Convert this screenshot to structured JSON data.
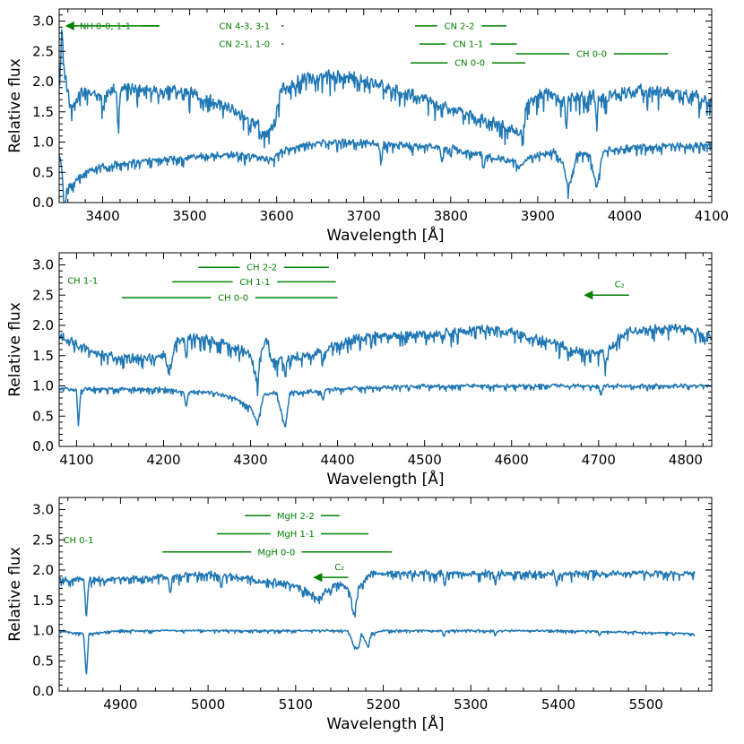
{
  "chart_data": [
    {
      "type": "line",
      "xlabel": "Wavelength [Å]",
      "ylabel": "Relative flux",
      "xlim": [
        3350,
        4100
      ],
      "ylim": [
        0,
        3.2
      ],
      "xticks": [
        3400,
        3500,
        3600,
        3700,
        3800,
        3900,
        4000,
        4100
      ],
      "yticks": [
        0.0,
        0.5,
        1.0,
        1.5,
        2.0,
        2.5,
        3.0
      ],
      "xtick_labels": [
        "3400",
        "3500",
        "3600",
        "3700",
        "3800",
        "3900",
        "4000",
        "4100"
      ],
      "ytick_labels": [
        "0.0",
        "0.5",
        "1.0",
        "1.5",
        "2.0",
        "2.5",
        "3.0"
      ],
      "series": [
        {
          "color": "#1f77b4",
          "seed": 11,
          "noise": 0.12,
          "points": [
            [
              3350,
              2.0
            ],
            [
              3353,
              2.9
            ],
            [
              3356,
              2.2
            ],
            [
              3362,
              1.6
            ],
            [
              3380,
              1.85
            ],
            [
              3400,
              1.75
            ],
            [
              3420,
              1.9
            ],
            [
              3450,
              1.85
            ],
            [
              3480,
              1.85
            ],
            [
              3500,
              1.8
            ],
            [
              3530,
              1.65
            ],
            [
              3560,
              1.45
            ],
            [
              3580,
              1.25
            ],
            [
              3590,
              1.15
            ],
            [
              3597,
              1.3
            ],
            [
              3605,
              1.85
            ],
            [
              3630,
              2.05
            ],
            [
              3660,
              2.1
            ],
            [
              3690,
              2.05
            ],
            [
              3720,
              1.95
            ],
            [
              3760,
              1.75
            ],
            [
              3800,
              1.55
            ],
            [
              3830,
              1.4
            ],
            [
              3850,
              1.3
            ],
            [
              3870,
              1.2
            ],
            [
              3880,
              1.1
            ],
            [
              3886,
              1.6
            ],
            [
              3900,
              1.8
            ],
            [
              3940,
              1.7
            ],
            [
              3960,
              1.75
            ],
            [
              3980,
              1.75
            ],
            [
              4000,
              1.8
            ],
            [
              4020,
              1.85
            ],
            [
              4060,
              1.8
            ],
            [
              4080,
              1.75
            ],
            [
              4100,
              1.65
            ]
          ],
          "dips": [
            [
              3418,
              0.6
            ],
            [
              3582,
              0.2
            ],
            [
              3883,
              0.3
            ],
            [
              3933,
              0.4
            ],
            [
              3968,
              0.35
            ]
          ]
        },
        {
          "color": "#1f77b4",
          "seed": 23,
          "noise": 0.06,
          "points": [
            [
              3350,
              0.8
            ],
            [
              3353,
              0.6
            ],
            [
              3356,
              0.15
            ],
            [
              3362,
              0.3
            ],
            [
              3380,
              0.5
            ],
            [
              3400,
              0.6
            ],
            [
              3420,
              0.65
            ],
            [
              3450,
              0.7
            ],
            [
              3500,
              0.75
            ],
            [
              3550,
              0.8
            ],
            [
              3580,
              0.75
            ],
            [
              3595,
              0.7
            ],
            [
              3605,
              0.85
            ],
            [
              3630,
              0.95
            ],
            [
              3660,
              1.0
            ],
            [
              3700,
              1.0
            ],
            [
              3750,
              0.95
            ],
            [
              3800,
              0.9
            ],
            [
              3850,
              0.75
            ],
            [
              3870,
              0.7
            ],
            [
              3880,
              0.6
            ],
            [
              3890,
              0.75
            ],
            [
              3920,
              0.85
            ],
            [
              3930,
              0.6
            ],
            [
              3935,
              0.2
            ],
            [
              3945,
              0.8
            ],
            [
              3960,
              0.8
            ],
            [
              3968,
              0.25
            ],
            [
              3975,
              0.85
            ],
            [
              4000,
              0.9
            ],
            [
              4050,
              0.95
            ],
            [
              4100,
              0.95
            ]
          ],
          "dips": [
            [
              3356,
              0.3
            ],
            [
              3720,
              0.3
            ],
            [
              3790,
              0.25
            ],
            [
              3838,
              0.25
            ]
          ]
        }
      ],
      "annotations": [
        {
          "text": "NH 0-0, 1-1",
          "x0": 3357,
          "x1": 3465,
          "y": 2.92,
          "tx": 3403,
          "arrow": "left"
        },
        {
          "text": "CN 4-3, 3-1",
          "x0": 3522,
          "x1": 3608,
          "y": 2.92,
          "tx": 3563
        },
        {
          "text": "CN 2-1, 1-0",
          "x0": 3522,
          "x1": 3608,
          "y": 2.62,
          "tx": 3563
        },
        {
          "text": "CN 2-2",
          "x0": 3759,
          "x1": 3864,
          "y": 2.92,
          "tx": 3810
        },
        {
          "text": "CN 1-1",
          "x0": 3764,
          "x1": 3876,
          "y": 2.62,
          "tx": 3820
        },
        {
          "text": "CN 0-0",
          "x0": 3754,
          "x1": 3886,
          "y": 2.31,
          "tx": 3822
        },
        {
          "text": "CH 0-0",
          "x0": 3875,
          "x1": 4050,
          "y": 2.46,
          "tx": 3962
        }
      ]
    },
    {
      "type": "line",
      "xlabel": "Wavelength [Å]",
      "ylabel": "Relative flux",
      "xlim": [
        4080,
        4830
      ],
      "ylim": [
        0,
        3.2
      ],
      "xticks": [
        4100,
        4200,
        4300,
        4400,
        4500,
        4600,
        4700,
        4800
      ],
      "yticks": [
        0.0,
        0.5,
        1.0,
        1.5,
        2.0,
        2.5,
        3.0
      ],
      "xtick_labels": [
        "4100",
        "4200",
        "4300",
        "4400",
        "4500",
        "4600",
        "4700",
        "4800"
      ],
      "ytick_labels": [
        "0.0",
        "0.5",
        "1.0",
        "1.5",
        "2.0",
        "2.5",
        "3.0"
      ],
      "series": [
        {
          "color": "#1f77b4",
          "seed": 37,
          "noise": 0.09,
          "points": [
            [
              4080,
              1.85
            ],
            [
              4100,
              1.7
            ],
            [
              4120,
              1.55
            ],
            [
              4150,
              1.45
            ],
            [
              4180,
              1.45
            ],
            [
              4200,
              1.5
            ],
            [
              4208,
              1.3
            ],
            [
              4215,
              1.8
            ],
            [
              4240,
              1.8
            ],
            [
              4270,
              1.7
            ],
            [
              4290,
              1.6
            ],
            [
              4300,
              1.5
            ],
            [
              4305,
              1.2
            ],
            [
              4312,
              1.5
            ],
            [
              4318,
              1.85
            ],
            [
              4325,
              1.4
            ],
            [
              4340,
              1.45
            ],
            [
              4360,
              1.5
            ],
            [
              4380,
              1.55
            ],
            [
              4400,
              1.7
            ],
            [
              4440,
              1.85
            ],
            [
              4480,
              1.85
            ],
            [
              4520,
              1.85
            ],
            [
              4560,
              1.95
            ],
            [
              4600,
              1.9
            ],
            [
              4640,
              1.75
            ],
            [
              4660,
              1.65
            ],
            [
              4680,
              1.55
            ],
            [
              4700,
              1.55
            ],
            [
              4715,
              1.65
            ],
            [
              4730,
              1.9
            ],
            [
              4760,
              1.95
            ],
            [
              4800,
              1.95
            ],
            [
              4830,
              1.8
            ]
          ],
          "dips": [
            [
              4226,
              0.3
            ],
            [
              4308,
              0.3
            ],
            [
              4340,
              0.3
            ],
            [
              4383,
              0.2
            ],
            [
              4708,
              0.3
            ]
          ]
        },
        {
          "color": "#1f77b4",
          "seed": 51,
          "noise": 0.035,
          "points": [
            [
              4080,
              0.95
            ],
            [
              4100,
              0.95
            ],
            [
              4102,
              0.3
            ],
            [
              4105,
              0.95
            ],
            [
              4150,
              0.95
            ],
            [
              4200,
              0.95
            ],
            [
              4220,
              0.9
            ],
            [
              4250,
              0.9
            ],
            [
              4280,
              0.8
            ],
            [
              4300,
              0.65
            ],
            [
              4308,
              0.35
            ],
            [
              4315,
              0.85
            ],
            [
              4330,
              0.9
            ],
            [
              4340,
              0.3
            ],
            [
              4345,
              0.9
            ],
            [
              4360,
              0.9
            ],
            [
              4400,
              0.95
            ],
            [
              4500,
              1.0
            ],
            [
              4600,
              1.0
            ],
            [
              4700,
              1.0
            ],
            [
              4800,
              1.0
            ],
            [
              4830,
              1.0
            ]
          ],
          "dips": [
            [
              4226,
              0.25
            ],
            [
              4383,
              0.15
            ],
            [
              4703,
              0.15
            ]
          ]
        }
      ],
      "annotations": [
        {
          "text": "CH 1-1",
          "x0": null,
          "x1": null,
          "y": 2.74,
          "tx": 4107
        },
        {
          "text": "CH 2-2",
          "x0": 4240,
          "x1": 4390,
          "y": 2.96,
          "tx": 4313
        },
        {
          "text": "CH 1-1",
          "x0": 4210,
          "x1": 4398,
          "y": 2.72,
          "tx": 4305
        },
        {
          "text": "CH 0-0",
          "x0": 4152,
          "x1": 4400,
          "y": 2.46,
          "tx": 4280
        },
        {
          "text": "C₂",
          "x0": 4683,
          "x1": 4735,
          "y": 2.5,
          "tx": 4724,
          "ty": 2.68,
          "arrow": "left"
        }
      ]
    },
    {
      "type": "line",
      "xlabel": "Wavelength [Å]",
      "ylabel": "Relative flux",
      "xlim": [
        4830,
        5575
      ],
      "ylim": [
        0,
        3.2
      ],
      "xticks": [
        4900,
        5000,
        5100,
        5200,
        5300,
        5400,
        5500
      ],
      "yticks": [
        0.0,
        0.5,
        1.0,
        1.5,
        2.0,
        2.5,
        3.0
      ],
      "xtick_labels": [
        "4900",
        "5000",
        "5100",
        "5200",
        "5300",
        "5400",
        "5500"
      ],
      "ytick_labels": [
        "0.0",
        "0.5",
        "1.0",
        "1.5",
        "2.0",
        "2.5",
        "3.0"
      ],
      "series": [
        {
          "color": "#1f77b4",
          "seed": 67,
          "noise": 0.055,
          "points": [
            [
              4830,
              1.85
            ],
            [
              4858,
              1.85
            ],
            [
              4861,
              1.2
            ],
            [
              4864,
              1.85
            ],
            [
              4900,
              1.85
            ],
            [
              4950,
              1.9
            ],
            [
              5000,
              1.95
            ],
            [
              5050,
              1.85
            ],
            [
              5080,
              1.8
            ],
            [
              5100,
              1.75
            ],
            [
              5115,
              1.65
            ],
            [
              5125,
              1.5
            ],
            [
              5130,
              1.6
            ],
            [
              5150,
              1.8
            ],
            [
              5160,
              1.7
            ],
            [
              5167,
              1.3
            ],
            [
              5172,
              1.7
            ],
            [
              5183,
              1.95
            ],
            [
              5200,
              1.95
            ],
            [
              5250,
              1.95
            ],
            [
              5300,
              1.95
            ],
            [
              5350,
              1.95
            ],
            [
              5400,
              1.95
            ],
            [
              5450,
              1.95
            ],
            [
              5500,
              1.95
            ],
            [
              5556,
              1.95
            ]
          ],
          "dips": [
            [
              4957,
              0.3
            ],
            [
              5015,
              0.25
            ],
            [
              5270,
              0.2
            ],
            [
              5328,
              0.15
            ],
            [
              5398,
              0.2
            ]
          ]
        },
        {
          "color": "#1f77b4",
          "seed": 79,
          "noise": 0.018,
          "points": [
            [
              4830,
              1.0
            ],
            [
              4858,
              0.95
            ],
            [
              4861,
              0.25
            ],
            [
              4864,
              0.95
            ],
            [
              4900,
              1.0
            ],
            [
              5000,
              1.0
            ],
            [
              5100,
              1.0
            ],
            [
              5160,
              1.0
            ],
            [
              5167,
              0.72
            ],
            [
              5172,
              0.72
            ],
            [
              5175,
              0.95
            ],
            [
              5183,
              0.72
            ],
            [
              5186,
              0.95
            ],
            [
              5200,
              1.0
            ],
            [
              5300,
              1.0
            ],
            [
              5400,
              1.0
            ],
            [
              5500,
              0.97
            ],
            [
              5556,
              0.95
            ]
          ],
          "dips": [
            [
              5269,
              0.08
            ],
            [
              5328,
              0.08
            ],
            [
              5447,
              0.07
            ]
          ]
        }
      ],
      "annotations": [
        {
          "text": "CH 0-1",
          "x0": null,
          "x1": null,
          "y": 2.5,
          "tx": 4852
        },
        {
          "text": "MgH 2-2",
          "x0": 5042,
          "x1": 5150,
          "y": 2.9,
          "tx": 5100
        },
        {
          "text": "MgH 1-1",
          "x0": 5010,
          "x1": 5183,
          "y": 2.6,
          "tx": 5100
        },
        {
          "text": "MgH 0-0",
          "x0": 4948,
          "x1": 5210,
          "y": 2.3,
          "tx": 5078
        },
        {
          "text": "C₂",
          "x0": 5120,
          "x1": 5160,
          "y": 1.88,
          "tx": 5150,
          "ty": 2.05,
          "arrow": "left"
        }
      ]
    }
  ]
}
